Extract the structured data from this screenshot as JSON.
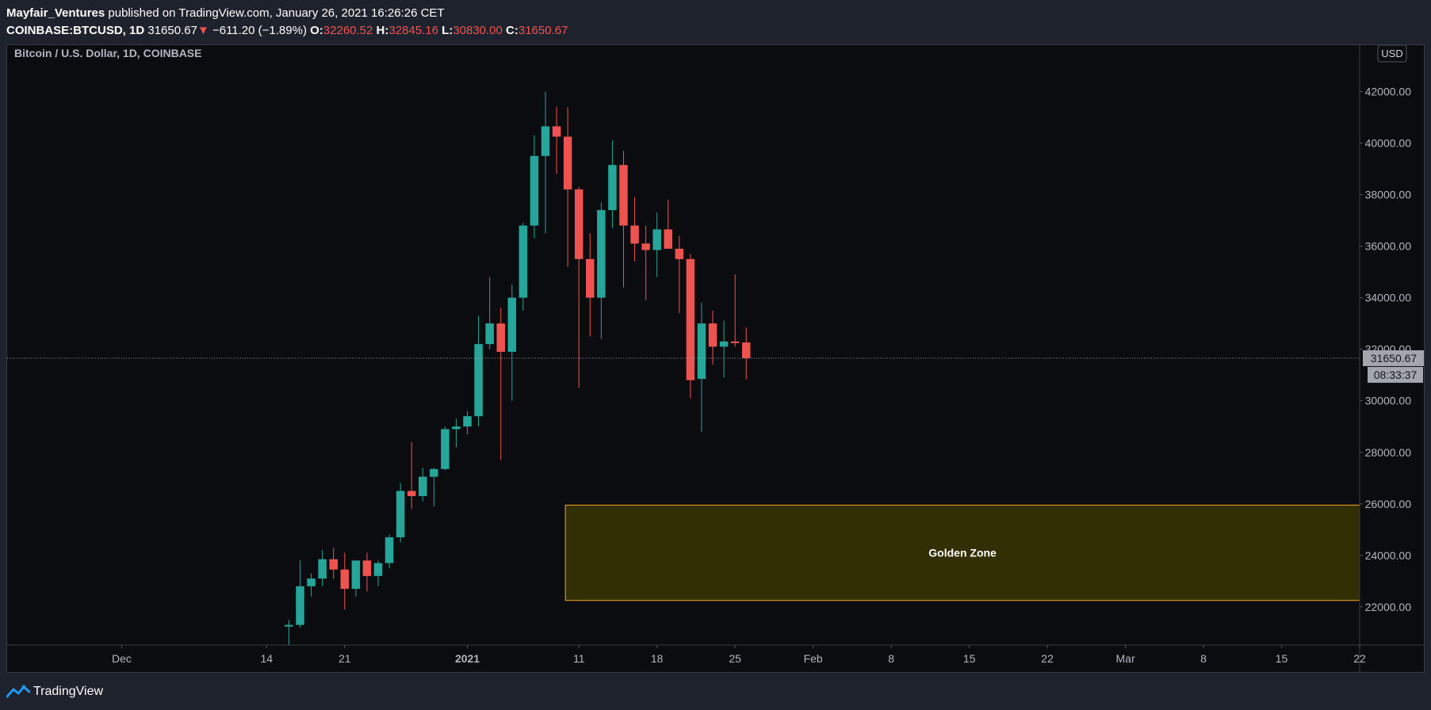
{
  "header": {
    "publisher": "Mayfair_Ventures",
    "published_text": "published on TradingView.com, January 26, 2021 16:26:26 CET",
    "symbol": "COINBASE:BTCUSD, 1D",
    "last": "31650.67",
    "change_arrow": "▼",
    "change": "−611.20 (−1.89%)",
    "o_label": "O:",
    "o_value": "32260.52",
    "h_label": "H:",
    "h_value": "32845.16",
    "l_label": "L:",
    "l_value": "30830.00",
    "c_label": "C:",
    "c_value": "31650.67"
  },
  "pane": {
    "title": "Bitcoin / U.S. Dollar, 1D, COINBASE",
    "currency": "USD"
  },
  "price_tags": {
    "last_price": "31650.67",
    "countdown": "08:33:37"
  },
  "footer": {
    "brand": "TradingView"
  },
  "colors": {
    "up": "#26a69a",
    "down": "#ef5350",
    "zone_fill": "#332f04",
    "zone_border": "#f5a623",
    "background": "#0b0c10"
  },
  "chart_data": {
    "type": "candlestick",
    "title": "Bitcoin / U.S. Dollar, 1D, COINBASE",
    "y_axis": {
      "ticks": [
        22000,
        24000,
        26000,
        28000,
        30000,
        32000,
        34000,
        36000,
        38000,
        40000,
        42000
      ],
      "tick_labels": [
        "22000.00",
        "24000.00",
        "26000.00",
        "28000.00",
        "30000.00",
        "32000.00",
        "34000.00",
        "36000.00",
        "38000.00",
        "40000.00",
        "42000.00"
      ],
      "ylim": [
        20520,
        43800
      ]
    },
    "x_axis": {
      "tick_dates": [
        "2020-12-01",
        "2020-12-14",
        "2020-12-21",
        "2021-01-01",
        "2021-01-11",
        "2021-01-18",
        "2021-01-25",
        "2021-02-01",
        "2021-02-08",
        "2021-02-15",
        "2021-02-22",
        "2021-03-01",
        "2021-03-08",
        "2021-03-15",
        "2021-03-22"
      ],
      "tick_labels": [
        "Dec",
        "14",
        "21",
        "2021",
        "11",
        "18",
        "25",
        "Feb",
        "8",
        "15",
        "22",
        "Mar",
        "8",
        "15",
        "22"
      ],
      "xlim": [
        "2020-11-25",
        "2021-03-22"
      ]
    },
    "candles": [
      {
        "date": "2020-12-16",
        "o": 21300,
        "h": 21500,
        "l": 20500,
        "c": 21300
      },
      {
        "date": "2020-12-17",
        "o": 21300,
        "h": 23800,
        "l": 21200,
        "c": 22800
      },
      {
        "date": "2020-12-18",
        "o": 22800,
        "h": 23300,
        "l": 22400,
        "c": 23100
      },
      {
        "date": "2020-12-19",
        "o": 23100,
        "h": 24200,
        "l": 22800,
        "c": 23850
      },
      {
        "date": "2020-12-20",
        "o": 23850,
        "h": 24300,
        "l": 23100,
        "c": 23450
      },
      {
        "date": "2020-12-21",
        "o": 23450,
        "h": 24100,
        "l": 21900,
        "c": 22700
      },
      {
        "date": "2020-12-22",
        "o": 22700,
        "h": 23800,
        "l": 22400,
        "c": 23800
      },
      {
        "date": "2020-12-23",
        "o": 23800,
        "h": 24100,
        "l": 22600,
        "c": 23200
      },
      {
        "date": "2020-12-24",
        "o": 23200,
        "h": 23800,
        "l": 22800,
        "c": 23700
      },
      {
        "date": "2020-12-25",
        "o": 23700,
        "h": 24800,
        "l": 23500,
        "c": 24700
      },
      {
        "date": "2020-12-26",
        "o": 24700,
        "h": 26800,
        "l": 24500,
        "c": 26500
      },
      {
        "date": "2020-12-27",
        "o": 26500,
        "h": 28400,
        "l": 25800,
        "c": 26300
      },
      {
        "date": "2020-12-28",
        "o": 26300,
        "h": 27400,
        "l": 26100,
        "c": 27050
      },
      {
        "date": "2020-12-29",
        "o": 27050,
        "h": 27400,
        "l": 25900,
        "c": 27350
      },
      {
        "date": "2020-12-30",
        "o": 27350,
        "h": 29000,
        "l": 27300,
        "c": 28900
      },
      {
        "date": "2020-12-31",
        "o": 28900,
        "h": 29300,
        "l": 28200,
        "c": 29000
      },
      {
        "date": "2021-01-01",
        "o": 29000,
        "h": 29600,
        "l": 28700,
        "c": 29400
      },
      {
        "date": "2021-01-02",
        "o": 29400,
        "h": 33300,
        "l": 29000,
        "c": 32200
      },
      {
        "date": "2021-01-03",
        "o": 32200,
        "h": 34800,
        "l": 32000,
        "c": 33000
      },
      {
        "date": "2021-01-04",
        "o": 33000,
        "h": 33600,
        "l": 27700,
        "c": 31900
      },
      {
        "date": "2021-01-05",
        "o": 31900,
        "h": 34500,
        "l": 30000,
        "c": 34000
      },
      {
        "date": "2021-01-06",
        "o": 34000,
        "h": 36900,
        "l": 33500,
        "c": 36800
      },
      {
        "date": "2021-01-07",
        "o": 36800,
        "h": 40300,
        "l": 36300,
        "c": 39500
      },
      {
        "date": "2021-01-08",
        "o": 39500,
        "h": 42000,
        "l": 36500,
        "c": 40650
      },
      {
        "date": "2021-01-09",
        "o": 40650,
        "h": 41400,
        "l": 38800,
        "c": 40250
      },
      {
        "date": "2021-01-10",
        "o": 40250,
        "h": 41400,
        "l": 35200,
        "c": 38200
      },
      {
        "date": "2021-01-11",
        "o": 38200,
        "h": 38300,
        "l": 30500,
        "c": 35500
      },
      {
        "date": "2021-01-12",
        "o": 35500,
        "h": 36500,
        "l": 32500,
        "c": 34000
      },
      {
        "date": "2021-01-13",
        "o": 34000,
        "h": 37700,
        "l": 32400,
        "c": 37400
      },
      {
        "date": "2021-01-14",
        "o": 37400,
        "h": 40100,
        "l": 36700,
        "c": 39150
      },
      {
        "date": "2021-01-15",
        "o": 39150,
        "h": 39700,
        "l": 34400,
        "c": 36800
      },
      {
        "date": "2021-01-16",
        "o": 36800,
        "h": 37900,
        "l": 35400,
        "c": 36100
      },
      {
        "date": "2021-01-17",
        "o": 36100,
        "h": 36800,
        "l": 33900,
        "c": 35850
      },
      {
        "date": "2021-01-18",
        "o": 35850,
        "h": 37300,
        "l": 34800,
        "c": 36650
      },
      {
        "date": "2021-01-19",
        "o": 36650,
        "h": 37800,
        "l": 35900,
        "c": 35900
      },
      {
        "date": "2021-01-20",
        "o": 35900,
        "h": 36400,
        "l": 33400,
        "c": 35500
      },
      {
        "date": "2021-01-21",
        "o": 35500,
        "h": 35700,
        "l": 30100,
        "c": 30800
      },
      {
        "date": "2021-01-22",
        "o": 30850,
        "h": 33800,
        "l": 28800,
        "c": 33000
      },
      {
        "date": "2021-01-23",
        "o": 33000,
        "h": 33500,
        "l": 31400,
        "c": 32100
      },
      {
        "date": "2021-01-24",
        "o": 32100,
        "h": 33100,
        "l": 30900,
        "c": 32300
      },
      {
        "date": "2021-01-25",
        "o": 32300,
        "h": 34900,
        "l": 32100,
        "c": 32260
      },
      {
        "date": "2021-01-26",
        "o": 32260.52,
        "h": 32845.16,
        "l": 30830,
        "c": 31650.67
      }
    ],
    "last_price_line": 31650.67,
    "annotations": [
      {
        "type": "rectangle",
        "label": "Golden Zone",
        "price_top": 25950,
        "price_bottom": 22250,
        "date_start": "2021-01-10"
      }
    ]
  }
}
